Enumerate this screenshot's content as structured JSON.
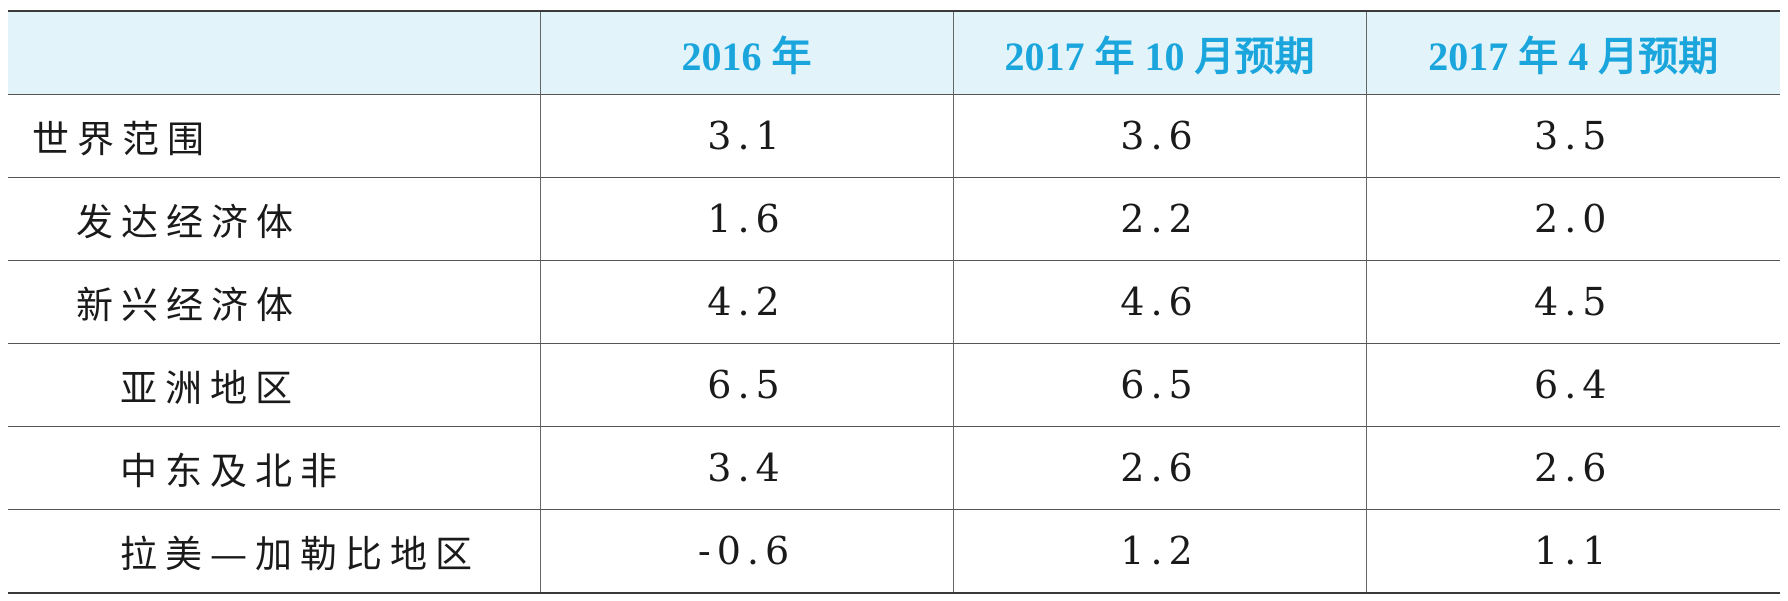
{
  "table": {
    "headers": [
      "",
      "2016 年",
      "2017 年 10 月预期",
      "2017 年 4 月预期"
    ],
    "rows": [
      {
        "label": "世界范围",
        "values": [
          "3.1",
          "3.6",
          "3.5"
        ]
      },
      {
        "label": "发达经济体",
        "values": [
          "1.6",
          "2.2",
          "2.0"
        ]
      },
      {
        "label": "新兴经济体",
        "values": [
          "4.2",
          "4.6",
          "4.5"
        ]
      },
      {
        "label": "亚洲地区",
        "values": [
          "6.5",
          "6.5",
          "6.4"
        ]
      },
      {
        "label": "中东及北非",
        "values": [
          "3.4",
          "2.6",
          "2.6"
        ]
      },
      {
        "label": "拉美—加勒比地区",
        "values": [
          "-0.6",
          "1.2",
          "1.1"
        ]
      }
    ]
  },
  "colors": {
    "header_background": "#e2f3fa",
    "header_text": "#1aa6dc"
  }
}
